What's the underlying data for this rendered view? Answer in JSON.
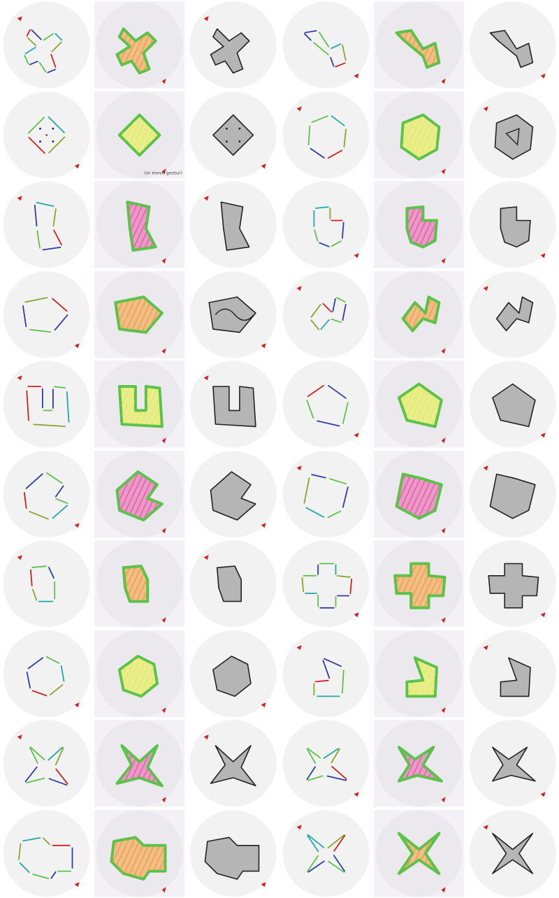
{
  "figure": {
    "rows": 10,
    "cols": 6,
    "colors": {
      "circle_bg": "#f2f2f2",
      "paper_bg": "#f3f1f6",
      "shape_fill": "#b5b5b5",
      "outline": "#222222",
      "green": "#5bc24a",
      "blue": "#2d3ea0",
      "teal": "#22a7a7",
      "olive": "#8aa52a",
      "red": "#d0221e",
      "pink": "#e85aa7",
      "orange": "#f39b3a",
      "yellow": "#e6ef4a",
      "cyan": "#3aa6d8"
    },
    "annotation_note": "(or move gestur)",
    "annotation_note_attach_cell": "1-1"
  }
}
